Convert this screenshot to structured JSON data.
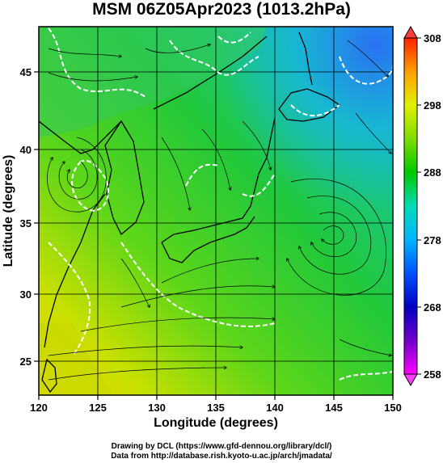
{
  "title": "MSM 06Z05Apr2023 (1013.2hPa)",
  "xaxis": {
    "label": "Longitude (degrees)",
    "ticks": [
      "120",
      "125",
      "130",
      "135",
      "140",
      "145",
      "150"
    ],
    "range": [
      120,
      150
    ]
  },
  "yaxis": {
    "label": "Latitude  (degrees)",
    "ticks": [
      "25",
      "30",
      "35",
      "40",
      "45"
    ],
    "range": [
      22.5,
      48
    ]
  },
  "colorbar": {
    "labels": [
      "308",
      "298",
      "288",
      "278",
      "268",
      "258"
    ],
    "range": [
      258,
      308
    ],
    "colors": [
      "#ff00ff",
      "#0000c0",
      "#0066ff",
      "#00ccff",
      "#00e0a0",
      "#00c800",
      "#66d800",
      "#ccee00",
      "#ffee00",
      "#ffaa00",
      "#ff3300"
    ]
  },
  "credits": {
    "line1": "Drawing by DCL (https://www.gfd-dennou.org/library/dcl/)",
    "line2": "Data from http://database.rish.kyoto-u.ac.jp/arch/jmadata/"
  },
  "map_features": {
    "contour_color": "#ffffff",
    "streamline_color": "#000000",
    "coastline_color": "#000000",
    "grid_color": "#000000"
  }
}
